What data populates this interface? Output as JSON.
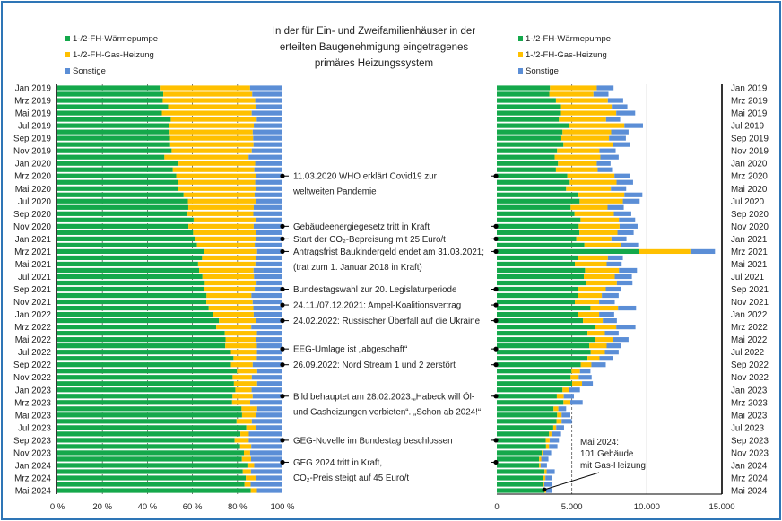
{
  "chart_data": [
    {
      "type": "bar",
      "orientation": "horizontal",
      "stacked": "percent",
      "tick_labels": [
        "Jan 2019",
        "Mrz 2019",
        "Mai 2019",
        "Jul 2019",
        "Sep 2019",
        "Nov 2019",
        "Jan 2020",
        "Mrz 2020",
        "Mai 2020",
        "Jul 2020",
        "Sep 2020",
        "Nov 2020",
        "Jan 2021",
        "Mrz 2021",
        "Mai 2021",
        "Jul 2021",
        "Sep 2021",
        "Nov 2021",
        "Jan 2022",
        "Mrz 2022",
        "Mai 2022",
        "Jul 2022",
        "Sep 2022",
        "Nov 2022",
        "Jan 2023",
        "Mrz 2023",
        "Mai 2023",
        "Jul 2023",
        "Sep 2023",
        "Nov 2023",
        "Jan 2024",
        "Mrz 2024",
        "Mai 2024"
      ],
      "x_ticks": [
        "0 %",
        "20 %",
        "40 %",
        "60 %",
        "80 %",
        "100 %"
      ],
      "xlim": [
        0,
        100
      ],
      "legend": [
        "1-/2-FH-Wärmepumpe",
        "1-/2-FH-Gas-Heizung",
        "Sonstige"
      ],
      "legend_position": "top-left",
      "grid": "vertical dashed"
    },
    {
      "type": "bar",
      "orientation": "horizontal",
      "stacked": "absolute",
      "tick_labels": [
        "Jan 2019",
        "Mrz 2019",
        "Mai 2019",
        "Jul 2019",
        "Sep 2019",
        "Nov 2019",
        "Jan 2020",
        "Mrz 2020",
        "Mai 2020",
        "Jul 2020",
        "Sep 2020",
        "Nov 2020",
        "Jan 2021",
        "Mrz 2021",
        "Mai 2021",
        "Jul 2021",
        "Sep 2021",
        "Nov 2021",
        "Jan 2022",
        "Mrz 2022",
        "Mai 2022",
        "Jul 2022",
        "Sep 2022",
        "Nov 2022",
        "Jan 2023",
        "Mrz 2023",
        "Mai 2023",
        "Jul 2023",
        "Sep 2023",
        "Nov 2023",
        "Jan 2024",
        "Mrz 2024",
        "Mai 2024"
      ],
      "x_ticks": [
        "0",
        "5.000",
        "10.000",
        "15.000"
      ],
      "xlim": [
        0,
        15000
      ],
      "legend": [
        "1-/2-FH-Wärmepumpe",
        "1-/2-FH-Gas-Heizung",
        "Sonstige"
      ],
      "legend_position": "top-right",
      "series": [
        {
          "name": "1-/2-FH-Wärmepumpe",
          "color": "#14a84b",
          "values": [
            3540,
            3500,
            3940,
            4280,
            4280,
            4140,
            4840,
            4380,
            4300,
            4440,
            4020,
            3860,
            4080,
            3940,
            4700,
            4860,
            4620,
            5440,
            5520,
            4920,
            5180,
            5580,
            5460,
            5500,
            5300,
            5840,
            9480,
            5400,
            5200,
            5880,
            5800,
            5920,
            5400,
            5380,
            5200,
            6240,
            5400,
            5740,
            6520,
            6040,
            6560,
            6160,
            6260,
            6040,
            5600,
            4980,
            4920,
            5020,
            4380,
            4000,
            4440,
            3780,
            4020,
            3980,
            3760,
            3480,
            3260,
            3280,
            3000,
            2820,
            2820,
            3180,
            3080,
            3060,
            3180
          ]
        },
        {
          "name": "1-/2-FH-Gas-Heizung",
          "color": "#ffc000",
          "values": [
            3120,
            2940,
            3460,
            3380,
            3680,
            3140,
            3660,
            3240,
            3180,
            3280,
            2820,
            3040,
            2580,
            2780,
            3140,
            3120,
            2980,
            3060,
            2880,
            2460,
            2620,
            2560,
            2720,
            2540,
            2340,
            2420,
            3420,
            2000,
            2120,
            2260,
            2060,
            2080,
            1860,
            1620,
            1620,
            1840,
            1420,
            1320,
            1440,
            1160,
            1180,
            1160,
            940,
            800,
            700,
            560,
            540,
            660,
            400,
            460,
            460,
            320,
            300,
            340,
            200,
            160,
            260,
            200,
            100,
            140,
            100,
            140,
            160,
            100,
            101
          ]
        },
        {
          "name": "Sonstige",
          "color": "#5b8ed6",
          "values": [
            1120,
            1000,
            1020,
            1040,
            1260,
            940,
            1240,
            1160,
            1120,
            1140,
            1080,
            1220,
            920,
            960,
            1060,
            1100,
            1020,
            1200,
            1120,
            1080,
            1160,
            1080,
            1200,
            1080,
            1000,
            1160,
            1640,
            1000,
            1000,
            1200,
            1140,
            1040,
            1020,
            1120,
            1040,
            1200,
            1000,
            940,
            1280,
            920,
            1040,
            940,
            920,
            880,
            960,
            700,
            860,
            720,
            760,
            680,
            820,
            520,
            580,
            680,
            520,
            640,
            620,
            560,
            520,
            480,
            420,
            540,
            440,
            520,
            420
          ]
        }
      ],
      "annotation": [
        "Mai 2024:",
        "101 Gebäude",
        "mit Gas-Heizung"
      ]
    }
  ],
  "title": [
    "In der für Ein- und Zweifamilienhäuser in der",
    "erteilten Baugenehmigung eingetragenes",
    "primäres Heizungssystem"
  ],
  "events": [
    {
      "lines": [
        "11.03.2020 WHO erklärt Covid19 zur",
        "weltweiten Pandemie"
      ]
    },
    {
      "lines": [
        "Gebäudeenergiegesetz tritt in Kraft"
      ]
    },
    {
      "lines": [
        "Start der CO₂-Bepreisung mit 25 Euro/t"
      ]
    },
    {
      "lines": [
        "Antragsfrist Baukindergeld endet am 31.03.2021;",
        "(trat zum 1. Januar 2018 in Kraft)"
      ]
    },
    {
      "lines": [
        "Bundestagswahl zur 20. Legislaturperiode"
      ]
    },
    {
      "lines": [
        "24.11./07.12.2021: Ampel-Koalitionsvertrag"
      ]
    },
    {
      "lines": [
        "24.02.2022: Russischer Überfall auf die Ukraine"
      ]
    },
    {
      "lines": [
        "EEG-Umlage ist „abgeschaft“"
      ]
    },
    {
      "lines": [
        "26.09.2022: Nord Stream 1 und 2 zerstört"
      ]
    },
    {
      "lines": [
        "Bild behauptet am 28.02.2023:„Habeck will Öl-",
        "und Gasheizungen verbieten“. „Schon ab 2024!“"
      ]
    },
    {
      "lines": [
        "GEG-Novelle  im Bundestag beschlossen"
      ]
    },
    {
      "lines": [
        "GEG 2024 tritt in Kraft,",
        "CO₂-Preis steigt auf 45 Euro/t"
      ]
    }
  ]
}
